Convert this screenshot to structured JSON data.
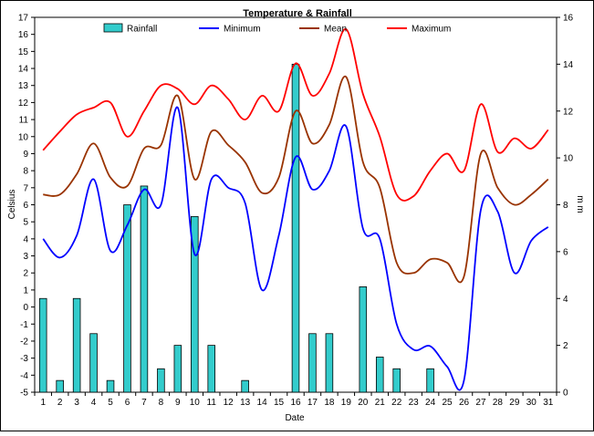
{
  "chart_data": {
    "type": "bar+line",
    "title": "Temperature & Rainfall",
    "xlabel": "Date",
    "ylabel_left": "Celsius",
    "ylabel_right": "m m",
    "ylim_left": [
      -5,
      17
    ],
    "ylim_right": [
      0,
      16
    ],
    "grid": false,
    "legend_position": "top",
    "categories": [
      "1",
      "2",
      "3",
      "4",
      "5",
      "6",
      "7",
      "8",
      "9",
      "10",
      "11",
      "12",
      "13",
      "14",
      "15",
      "16",
      "17",
      "18",
      "19",
      "20",
      "21",
      "22",
      "23",
      "24",
      "25",
      "26",
      "27",
      "28",
      "29",
      "30",
      "31"
    ],
    "bars": {
      "name": "Rainfall",
      "axis": "right",
      "color": "#33CCCC",
      "values": [
        4.0,
        0.5,
        4.0,
        2.5,
        0.5,
        8.0,
        8.8,
        1.0,
        2.0,
        7.5,
        2.0,
        0,
        0.5,
        0,
        0,
        14.0,
        2.5,
        2.5,
        0,
        4.5,
        1.5,
        1.0,
        0,
        1.0,
        0,
        0,
        0,
        0,
        0,
        0,
        0
      ]
    },
    "series": [
      {
        "name": "Minimum",
        "axis": "left",
        "color": "#0000FF",
        "values": [
          4.0,
          2.9,
          4.2,
          7.5,
          3.3,
          4.8,
          6.9,
          6.0,
          11.7,
          3.1,
          7.5,
          7.0,
          6.1,
          1.0,
          4.2,
          8.8,
          6.9,
          8.0,
          10.6,
          4.6,
          4.0,
          -1.0,
          -2.5,
          -2.3,
          -3.5,
          -4.3,
          5.7,
          5.6,
          2.0,
          3.9,
          4.7
        ]
      },
      {
        "name": "Mean",
        "axis": "left",
        "color": "#993300",
        "values": [
          6.6,
          6.6,
          7.8,
          9.6,
          7.6,
          7.1,
          9.3,
          9.5,
          12.4,
          7.5,
          10.3,
          9.5,
          8.5,
          6.7,
          7.6,
          11.5,
          9.6,
          10.7,
          13.5,
          8.5,
          7.0,
          2.6,
          2.0,
          2.8,
          2.6,
          1.8,
          9.0,
          7.0,
          6.0,
          6.6,
          7.5
        ]
      },
      {
        "name": "Maximum",
        "axis": "left",
        "color": "#FF0000",
        "values": [
          9.2,
          10.3,
          11.3,
          11.7,
          12.0,
          10.0,
          11.5,
          13.0,
          12.8,
          11.9,
          13.0,
          12.2,
          11.0,
          12.4,
          11.5,
          14.3,
          12.4,
          13.7,
          16.3,
          12.5,
          10.0,
          6.6,
          6.5,
          8.0,
          9.0,
          8.0,
          11.9,
          9.1,
          9.9,
          9.3,
          10.4
        ]
      }
    ]
  }
}
